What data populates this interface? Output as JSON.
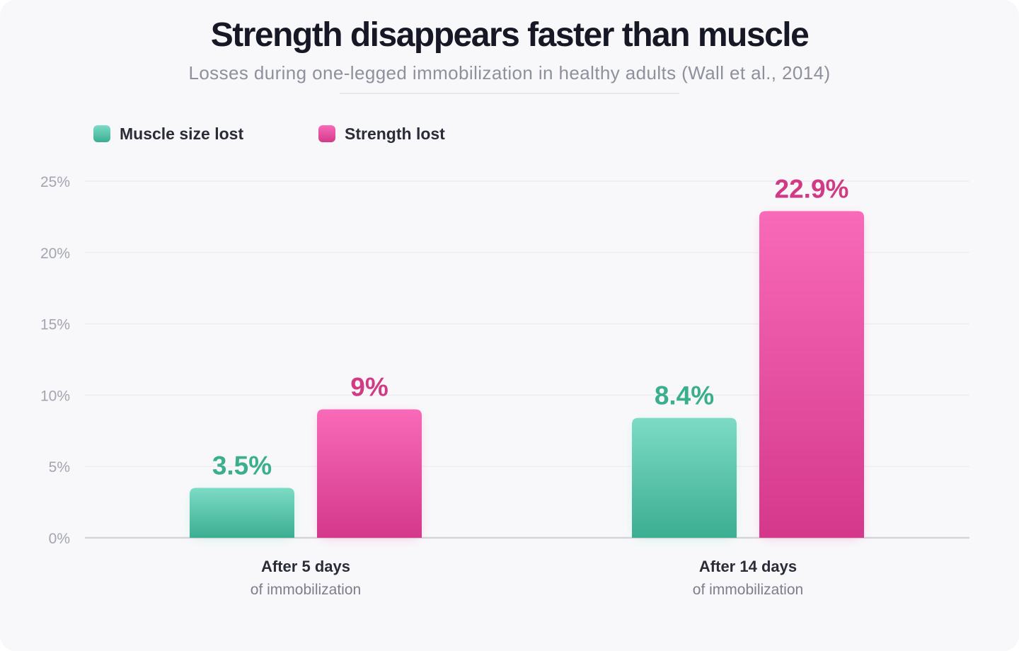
{
  "title": "Strength disappears faster than muscle",
  "subtitle": "Losses during one-legged immobilization in healthy adults (Wall et al., 2014)",
  "legend": [
    {
      "label": "Muscle size lost",
      "color": "#4fc4a4"
    },
    {
      "label": "Strength lost",
      "color": "#e8499a"
    }
  ],
  "colors": {
    "muscle_top": "#7ddbc5",
    "muscle_bottom": "#3bae92",
    "muscle_text": "#3bae8c",
    "strength_top": "#f86ab8",
    "strength_bottom": "#d5388a",
    "strength_text": "#d13a85",
    "grid": "#ececf0",
    "baseline": "#d4d4da"
  },
  "chart_data": {
    "type": "bar",
    "categories": [
      "After 5 days",
      "After 14 days"
    ],
    "category_sublabels": [
      "of immobilization",
      "of immobilization"
    ],
    "series": [
      {
        "name": "Muscle size lost",
        "values": [
          3.5,
          8.4
        ],
        "labels": [
          "3.5%",
          "8.4%"
        ]
      },
      {
        "name": "Strength lost",
        "values": [
          9,
          22.9
        ],
        "labels": [
          "9%",
          "22.9%"
        ]
      }
    ],
    "ylim": [
      0,
      25
    ],
    "yticks": [
      0,
      5,
      10,
      15,
      20,
      25
    ],
    "ytick_labels": [
      "0%",
      "5%",
      "10%",
      "15%",
      "20%",
      "25%"
    ],
    "grid": true,
    "legend_position": "top-left"
  }
}
